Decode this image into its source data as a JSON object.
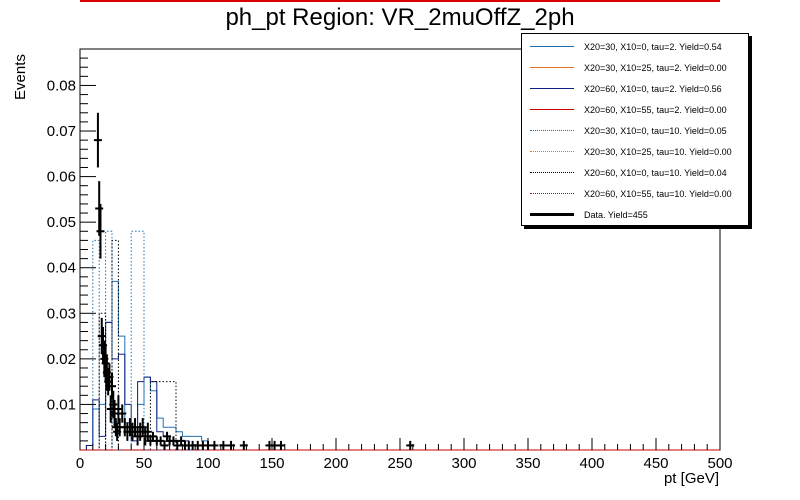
{
  "chart_data": {
    "type": "line",
    "title": "ph_pt Region: VR_2muOffZ_2ph",
    "xlabel": "pt [GeV]",
    "ylabel": "Events",
    "xlim": [
      0,
      500
    ],
    "ylim": [
      0,
      0.088
    ],
    "xticks": [
      "0",
      "50",
      "100",
      "150",
      "200",
      "250",
      "300",
      "350",
      "400",
      "450",
      "500"
    ],
    "yticks": [
      "0.01",
      "0.02",
      "0.03",
      "0.04",
      "0.05",
      "0.06",
      "0.07",
      "0.08"
    ],
    "legend_position": "top-right",
    "series": [
      {
        "name": "X20=30, X10=0, tau=2. Yield=0.54",
        "color": "#2070b0",
        "style": "solid",
        "edges": [
          0,
          5,
          10,
          15,
          20,
          25,
          30,
          35,
          40,
          45,
          50,
          55,
          60,
          65,
          70,
          75,
          80,
          85,
          90,
          95,
          100,
          105
        ],
        "values": [
          0.0,
          0.001,
          0.009,
          0.01,
          0.028,
          0.037,
          0.025,
          0.006,
          0.004,
          0.01,
          0.016,
          0.013,
          0.007,
          0.005,
          0.005,
          0.004,
          0.003,
          0.003,
          0.003,
          0.002,
          0.001
        ]
      },
      {
        "name": "X20=30, X10=25, tau=2. Yield=0.00",
        "color": "#e87020",
        "style": "solid",
        "edges": [
          0,
          500
        ],
        "values": [
          0.0
        ]
      },
      {
        "name": "X20=60, X10=0, tau=2. Yield=0.56",
        "color": "#102080",
        "style": "solid",
        "edges": [
          0,
          5,
          10,
          15,
          20,
          25,
          30,
          35,
          40,
          45,
          50,
          55,
          60,
          65,
          70,
          75,
          80,
          85,
          90,
          95,
          100,
          105
        ],
        "values": [
          0.0,
          0.001,
          0.011,
          0.003,
          0.028,
          0.02,
          0.021,
          0.01,
          0.002,
          0.015,
          0.016,
          0.015,
          0.004,
          0.003,
          0.002,
          0.002,
          0.002,
          0.001,
          0.001,
          0.001,
          0.001
        ]
      },
      {
        "name": "X20=60, X10=55, tau=2. Yield=0.00",
        "color": "#cc0000",
        "style": "solid",
        "edges": [
          0,
          500
        ],
        "values": [
          0.0
        ]
      },
      {
        "name": "X20=30, X10=0, tau=10. Yield=0.05",
        "color": "#2070b0",
        "style": "dotted",
        "edges": [
          0,
          5,
          10,
          15,
          20,
          25,
          30,
          35,
          40,
          45,
          50,
          55,
          60,
          65,
          70,
          75,
          80,
          85,
          90,
          95,
          100
        ],
        "values": [
          0.0,
          0.0,
          0.046,
          0.0,
          0.048,
          0.0,
          0.0,
          0.0,
          0.048,
          0.048,
          0.0,
          0.0,
          0.0,
          0.0,
          0.0,
          0.0,
          0.0,
          0.0,
          0.0,
          0.0
        ]
      },
      {
        "name": "X20=30, X10=25, tau=10. Yield=0.00",
        "color": "#e87020",
        "style": "dotted",
        "edges": [
          0,
          500
        ],
        "values": [
          0.0
        ]
      },
      {
        "name": "X20=60, X10=0, tau=10. Yield=0.04",
        "color": "#000000",
        "style": "dotted",
        "edges": [
          0,
          5,
          10,
          15,
          20,
          25,
          30,
          35,
          40,
          45,
          50,
          55,
          60,
          65,
          70,
          75,
          80
        ],
        "values": [
          0.0,
          0.0,
          0.0,
          0.03,
          0.0,
          0.046,
          0.0,
          0.0,
          0.0,
          0.0,
          0.0,
          0.015,
          0.015,
          0.015,
          0.015,
          0.0
        ]
      },
      {
        "name": "X20=60, X10=55, tau=10. Yield=0.00",
        "color": "#cc0000",
        "style": "dotted",
        "edges": [
          0,
          500
        ],
        "values": [
          0.0
        ]
      },
      {
        "name": "Data. Yield=455",
        "color": "#000000",
        "style": "points",
        "points": [
          {
            "x": 14,
            "y": 0.068,
            "err": 0.006
          },
          {
            "x": 15,
            "y": 0.053,
            "err": 0.006
          },
          {
            "x": 16,
            "y": 0.048,
            "err": 0.006
          },
          {
            "x": 17,
            "y": 0.025,
            "err": 0.004
          },
          {
            "x": 18,
            "y": 0.023,
            "err": 0.004
          },
          {
            "x": 19,
            "y": 0.02,
            "err": 0.004
          },
          {
            "x": 20,
            "y": 0.019,
            "err": 0.004
          },
          {
            "x": 21,
            "y": 0.017,
            "err": 0.004
          },
          {
            "x": 22,
            "y": 0.015,
            "err": 0.003
          },
          {
            "x": 23,
            "y": 0.016,
            "err": 0.003
          },
          {
            "x": 24,
            "y": 0.009,
            "err": 0.003
          },
          {
            "x": 25,
            "y": 0.014,
            "err": 0.003
          },
          {
            "x": 26,
            "y": 0.01,
            "err": 0.003
          },
          {
            "x": 27,
            "y": 0.008,
            "err": 0.003
          },
          {
            "x": 28,
            "y": 0.005,
            "err": 0.002
          },
          {
            "x": 29,
            "y": 0.004,
            "err": 0.002
          },
          {
            "x": 30,
            "y": 0.009,
            "err": 0.003
          },
          {
            "x": 31,
            "y": 0.005,
            "err": 0.002
          },
          {
            "x": 33,
            "y": 0.008,
            "err": 0.002
          },
          {
            "x": 35,
            "y": 0.005,
            "err": 0.002
          },
          {
            "x": 37,
            "y": 0.004,
            "err": 0.002
          },
          {
            "x": 39,
            "y": 0.005,
            "err": 0.002
          },
          {
            "x": 41,
            "y": 0.004,
            "err": 0.002
          },
          {
            "x": 43,
            "y": 0.005,
            "err": 0.002
          },
          {
            "x": 45,
            "y": 0.003,
            "err": 0.002
          },
          {
            "x": 47,
            "y": 0.004,
            "err": 0.002
          },
          {
            "x": 49,
            "y": 0.005,
            "err": 0.002
          },
          {
            "x": 51,
            "y": 0.003,
            "err": 0.002
          },
          {
            "x": 53,
            "y": 0.004,
            "err": 0.002
          },
          {
            "x": 55,
            "y": 0.002,
            "err": 0.001
          },
          {
            "x": 57,
            "y": 0.003,
            "err": 0.001
          },
          {
            "x": 60,
            "y": 0.002,
            "err": 0.001
          },
          {
            "x": 63,
            "y": 0.002,
            "err": 0.001
          },
          {
            "x": 66,
            "y": 0.001,
            "err": 0.001
          },
          {
            "x": 68,
            "y": 0.003,
            "err": 0.001
          },
          {
            "x": 70,
            "y": 0.002,
            "err": 0.001
          },
          {
            "x": 73,
            "y": 0.002,
            "err": 0.001
          },
          {
            "x": 76,
            "y": 0.001,
            "err": 0.001
          },
          {
            "x": 79,
            "y": 0.002,
            "err": 0.001
          },
          {
            "x": 82,
            "y": 0.001,
            "err": 0.001
          },
          {
            "x": 85,
            "y": 0.001,
            "err": 0.001
          },
          {
            "x": 88,
            "y": 0.001,
            "err": 0.001
          },
          {
            "x": 92,
            "y": 0.001,
            "err": 0.001
          },
          {
            "x": 96,
            "y": 0.001,
            "err": 0.001
          },
          {
            "x": 100,
            "y": 0.001,
            "err": 0.001
          },
          {
            "x": 105,
            "y": 0.001,
            "err": 0.001
          },
          {
            "x": 112,
            "y": 0.001,
            "err": 0.001
          },
          {
            "x": 118,
            "y": 0.001,
            "err": 0.001
          },
          {
            "x": 128,
            "y": 0.001,
            "err": 0.001
          },
          {
            "x": 148,
            "y": 0.001,
            "err": 0.001
          },
          {
            "x": 152,
            "y": 0.001,
            "err": 0.001
          },
          {
            "x": 157,
            "y": 0.001,
            "err": 0.001
          },
          {
            "x": 258,
            "y": 0.001,
            "err": 0.001
          }
        ]
      }
    ]
  },
  "top_rule_color": "#dd0000"
}
